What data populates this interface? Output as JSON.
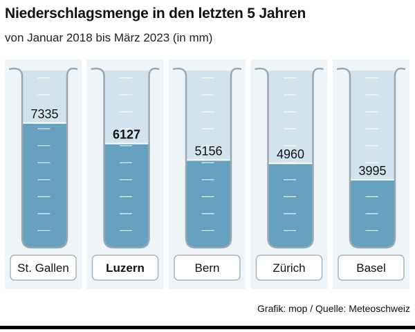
{
  "title": "Niederschlagsmenge in den letzten 5 Jahren",
  "subtitle": "von Januar 2018 bis März 2023 (in mm)",
  "source": "Grafik: mop / Quelle: Meteoschweiz",
  "colors": {
    "panel": "#eef4f8",
    "tube_empty": "#d3e3ed",
    "water": "#66a1c0",
    "tube_border": "#9aa8b2"
  },
  "chart_data": {
    "type": "bar",
    "title": "Niederschlagsmenge in den letzten 5 Jahren",
    "subtitle": "von Januar 2018 bis März 2023 (in mm)",
    "categories": [
      "St. Gallen",
      "Luzern",
      "Bern",
      "Zürich",
      "Basel"
    ],
    "values": [
      7335,
      6127,
      5156,
      4960,
      3995
    ],
    "labels": [
      "7335",
      "6127",
      "5156",
      "4960",
      "3995"
    ],
    "highlight": "Luzern",
    "ylim": [
      0,
      10500
    ],
    "tick_interval": 1000,
    "grid": false
  }
}
